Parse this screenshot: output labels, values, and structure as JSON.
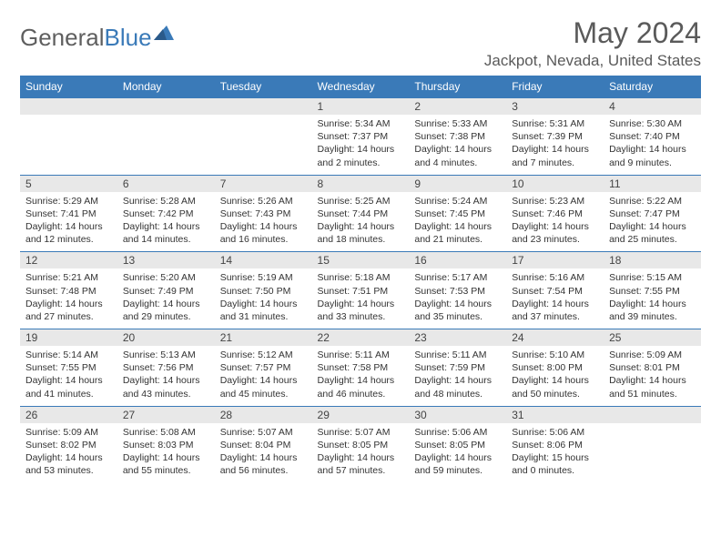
{
  "logo": {
    "text1": "General",
    "text2": "Blue"
  },
  "title": "May 2024",
  "location": "Jackpot, Nevada, United States",
  "colors": {
    "header_bg": "#3a7ab8",
    "header_text": "#ffffff",
    "daynum_bg": "#e8e8e8",
    "border": "#3a7ab8",
    "text": "#333333",
    "title_text": "#5a5a5a"
  },
  "weekdays": [
    "Sunday",
    "Monday",
    "Tuesday",
    "Wednesday",
    "Thursday",
    "Friday",
    "Saturday"
  ],
  "weeks": [
    {
      "nums": [
        "",
        "",
        "",
        "1",
        "2",
        "3",
        "4"
      ],
      "cells": [
        null,
        null,
        null,
        {
          "sr": "5:34 AM",
          "ss": "7:37 PM",
          "dl": "14 hours and 2 minutes."
        },
        {
          "sr": "5:33 AM",
          "ss": "7:38 PM",
          "dl": "14 hours and 4 minutes."
        },
        {
          "sr": "5:31 AM",
          "ss": "7:39 PM",
          "dl": "14 hours and 7 minutes."
        },
        {
          "sr": "5:30 AM",
          "ss": "7:40 PM",
          "dl": "14 hours and 9 minutes."
        }
      ]
    },
    {
      "nums": [
        "5",
        "6",
        "7",
        "8",
        "9",
        "10",
        "11"
      ],
      "cells": [
        {
          "sr": "5:29 AM",
          "ss": "7:41 PM",
          "dl": "14 hours and 12 minutes."
        },
        {
          "sr": "5:28 AM",
          "ss": "7:42 PM",
          "dl": "14 hours and 14 minutes."
        },
        {
          "sr": "5:26 AM",
          "ss": "7:43 PM",
          "dl": "14 hours and 16 minutes."
        },
        {
          "sr": "5:25 AM",
          "ss": "7:44 PM",
          "dl": "14 hours and 18 minutes."
        },
        {
          "sr": "5:24 AM",
          "ss": "7:45 PM",
          "dl": "14 hours and 21 minutes."
        },
        {
          "sr": "5:23 AM",
          "ss": "7:46 PM",
          "dl": "14 hours and 23 minutes."
        },
        {
          "sr": "5:22 AM",
          "ss": "7:47 PM",
          "dl": "14 hours and 25 minutes."
        }
      ]
    },
    {
      "nums": [
        "12",
        "13",
        "14",
        "15",
        "16",
        "17",
        "18"
      ],
      "cells": [
        {
          "sr": "5:21 AM",
          "ss": "7:48 PM",
          "dl": "14 hours and 27 minutes."
        },
        {
          "sr": "5:20 AM",
          "ss": "7:49 PM",
          "dl": "14 hours and 29 minutes."
        },
        {
          "sr": "5:19 AM",
          "ss": "7:50 PM",
          "dl": "14 hours and 31 minutes."
        },
        {
          "sr": "5:18 AM",
          "ss": "7:51 PM",
          "dl": "14 hours and 33 minutes."
        },
        {
          "sr": "5:17 AM",
          "ss": "7:53 PM",
          "dl": "14 hours and 35 minutes."
        },
        {
          "sr": "5:16 AM",
          "ss": "7:54 PM",
          "dl": "14 hours and 37 minutes."
        },
        {
          "sr": "5:15 AM",
          "ss": "7:55 PM",
          "dl": "14 hours and 39 minutes."
        }
      ]
    },
    {
      "nums": [
        "19",
        "20",
        "21",
        "22",
        "23",
        "24",
        "25"
      ],
      "cells": [
        {
          "sr": "5:14 AM",
          "ss": "7:55 PM",
          "dl": "14 hours and 41 minutes."
        },
        {
          "sr": "5:13 AM",
          "ss": "7:56 PM",
          "dl": "14 hours and 43 minutes."
        },
        {
          "sr": "5:12 AM",
          "ss": "7:57 PM",
          "dl": "14 hours and 45 minutes."
        },
        {
          "sr": "5:11 AM",
          "ss": "7:58 PM",
          "dl": "14 hours and 46 minutes."
        },
        {
          "sr": "5:11 AM",
          "ss": "7:59 PM",
          "dl": "14 hours and 48 minutes."
        },
        {
          "sr": "5:10 AM",
          "ss": "8:00 PM",
          "dl": "14 hours and 50 minutes."
        },
        {
          "sr": "5:09 AM",
          "ss": "8:01 PM",
          "dl": "14 hours and 51 minutes."
        }
      ]
    },
    {
      "nums": [
        "26",
        "27",
        "28",
        "29",
        "30",
        "31",
        ""
      ],
      "cells": [
        {
          "sr": "5:09 AM",
          "ss": "8:02 PM",
          "dl": "14 hours and 53 minutes."
        },
        {
          "sr": "5:08 AM",
          "ss": "8:03 PM",
          "dl": "14 hours and 55 minutes."
        },
        {
          "sr": "5:07 AM",
          "ss": "8:04 PM",
          "dl": "14 hours and 56 minutes."
        },
        {
          "sr": "5:07 AM",
          "ss": "8:05 PM",
          "dl": "14 hours and 57 minutes."
        },
        {
          "sr": "5:06 AM",
          "ss": "8:05 PM",
          "dl": "14 hours and 59 minutes."
        },
        {
          "sr": "5:06 AM",
          "ss": "8:06 PM",
          "dl": "15 hours and 0 minutes."
        },
        null
      ]
    }
  ],
  "labels": {
    "sunrise": "Sunrise:",
    "sunset": "Sunset:",
    "daylight": "Daylight:"
  }
}
